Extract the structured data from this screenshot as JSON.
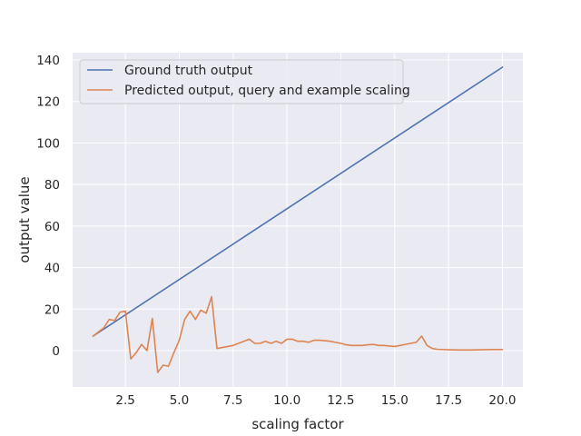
{
  "chart_data": {
    "type": "line",
    "title": "",
    "xlabel": "scaling factor",
    "ylabel": "output value",
    "xlim": [
      0.05,
      20.95
    ],
    "ylim": [
      -17.5,
      143.5
    ],
    "xticks": [
      2.5,
      5.0,
      7.5,
      10.0,
      12.5,
      15.0,
      17.5,
      20.0
    ],
    "xtick_labels": [
      "2.5",
      "5.0",
      "7.5",
      "10.0",
      "12.5",
      "15.0",
      "17.5",
      "20.0"
    ],
    "yticks": [
      0,
      20,
      40,
      60,
      80,
      100,
      120,
      140
    ],
    "ytick_labels": [
      "0",
      "20",
      "40",
      "60",
      "80",
      "100",
      "120",
      "140"
    ],
    "grid": true,
    "legend_position": "top-left",
    "background": "#eaeaf2",
    "series": [
      {
        "name": "Ground truth output",
        "color": "#4c72b0",
        "x": [
          1.0,
          20.0
        ],
        "y": [
          7.0,
          136.5
        ]
      },
      {
        "name": "Predicted output, query and example scaling",
        "color": "#dd8452",
        "x": [
          1.0,
          1.25,
          1.5,
          1.75,
          2.0,
          2.25,
          2.5,
          2.75,
          3.0,
          3.25,
          3.5,
          3.75,
          4.0,
          4.25,
          4.5,
          4.75,
          5.0,
          5.25,
          5.5,
          5.75,
          6.0,
          6.25,
          6.5,
          6.75,
          7.0,
          7.25,
          7.5,
          7.75,
          8.0,
          8.25,
          8.5,
          8.75,
          9.0,
          9.25,
          9.5,
          9.75,
          10.0,
          10.25,
          10.5,
          10.75,
          11.0,
          11.25,
          11.5,
          11.75,
          12.0,
          12.25,
          12.5,
          12.75,
          13.0,
          13.25,
          13.5,
          13.75,
          14.0,
          14.25,
          14.5,
          14.75,
          15.0,
          15.25,
          15.5,
          15.75,
          16.0,
          16.25,
          16.5,
          16.75,
          17.0,
          17.5,
          18.0,
          18.5,
          19.0,
          19.5,
          20.0
        ],
        "y": [
          7.0,
          9.0,
          11.0,
          15.0,
          14.5,
          18.5,
          19.0,
          -4.0,
          -1.0,
          3.0,
          0.0,
          15.5,
          -10.5,
          -7.0,
          -7.5,
          -1.0,
          5.0,
          15.0,
          19.0,
          15.0,
          19.5,
          18.0,
          26.0,
          1.0,
          1.5,
          2.0,
          2.5,
          3.5,
          4.5,
          5.5,
          3.5,
          3.5,
          4.5,
          3.5,
          4.5,
          3.5,
          5.5,
          5.5,
          4.5,
          4.5,
          4.0,
          5.0,
          5.0,
          4.8,
          4.5,
          4.0,
          3.5,
          2.8,
          2.5,
          2.5,
          2.5,
          2.8,
          3.0,
          2.5,
          2.5,
          2.2,
          2.0,
          2.5,
          3.0,
          3.5,
          4.0,
          7.0,
          2.5,
          1.0,
          0.6,
          0.4,
          0.3,
          0.3,
          0.4,
          0.5,
          0.5
        ]
      }
    ]
  }
}
